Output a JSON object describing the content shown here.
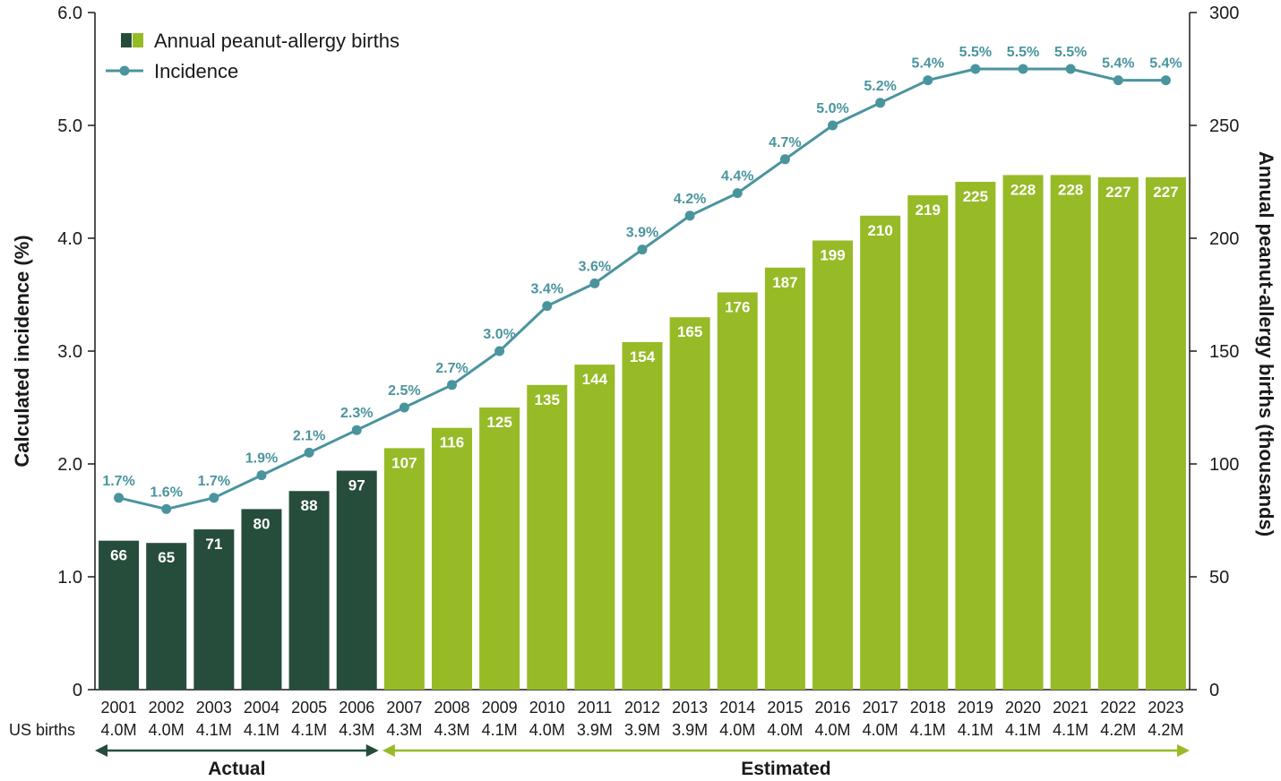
{
  "chart_data": {
    "type": "bar",
    "categories": [
      "2001",
      "2002",
      "2003",
      "2004",
      "2005",
      "2006",
      "2007",
      "2008",
      "2009",
      "2010",
      "2011",
      "2012",
      "2013",
      "2014",
      "2015",
      "2016",
      "2017",
      "2018",
      "2019",
      "2020",
      "2021",
      "2022",
      "2023"
    ],
    "us_births_label": "US births",
    "us_births": [
      "4.0M",
      "4.0M",
      "4.1M",
      "4.1M",
      "4.1M",
      "4.3M",
      "4.3M",
      "4.3M",
      "4.1M",
      "4.0M",
      "3.9M",
      "3.9M",
      "3.9M",
      "4.0M",
      "4.0M",
      "4.0M",
      "4.0M",
      "4.1M",
      "4.1M",
      "4.1M",
      "4.1M",
      "4.2M",
      "4.2M"
    ],
    "series": [
      {
        "name": "Annual peanut-allergy births",
        "type": "bar",
        "axis": "right",
        "values": [
          66,
          65,
          71,
          80,
          88,
          97,
          107,
          116,
          125,
          135,
          144,
          154,
          165,
          176,
          187,
          199,
          210,
          219,
          225,
          228,
          228,
          227,
          227
        ],
        "labels": [
          "66",
          "65",
          "71",
          "80",
          "88",
          "97",
          "107",
          "116",
          "125",
          "135",
          "144",
          "154",
          "165",
          "176",
          "187",
          "199",
          "210",
          "219",
          "225",
          "228",
          "228",
          "227",
          "227"
        ],
        "colors": {
          "actual": "#264d3c",
          "estimated": "#97ba27"
        }
      },
      {
        "name": "Incidence",
        "type": "line",
        "axis": "left",
        "values": [
          1.7,
          1.6,
          1.7,
          1.9,
          2.1,
          2.3,
          2.5,
          2.7,
          3.0,
          3.4,
          3.6,
          3.9,
          4.2,
          4.4,
          4.7,
          5.0,
          5.2,
          5.4,
          5.5,
          5.5,
          5.5,
          5.4,
          5.4
        ],
        "labels": [
          "1.7%",
          "1.6%",
          "1.7%",
          "1.9%",
          "2.1%",
          "2.3%",
          "2.5%",
          "2.7%",
          "3.0%",
          "3.4%",
          "3.6%",
          "3.9%",
          "4.2%",
          "4.4%",
          "4.7%",
          "5.0%",
          "5.2%",
          "5.4%",
          "5.5%",
          "5.5%",
          "5.5%",
          "5.4%",
          "5.4%"
        ],
        "color": "#4a949e"
      }
    ],
    "left_axis": {
      "label": "Calculated incidence (%)",
      "range": [
        0,
        6
      ],
      "ticks": [
        0,
        1,
        2,
        3,
        4,
        5,
        6
      ],
      "tick_labels": [
        "0",
        "1.0",
        "2.0",
        "3.0",
        "4.0",
        "5.0",
        "6.0"
      ]
    },
    "right_axis": {
      "label": "Annual peanut-allergy births (thousands)",
      "range": [
        0,
        300
      ],
      "ticks": [
        0,
        50,
        100,
        150,
        200,
        250,
        300
      ],
      "tick_labels": [
        "0",
        "50",
        "100",
        "150",
        "200",
        "250",
        "300"
      ]
    },
    "periods": [
      {
        "label": "Actual",
        "from": "2001",
        "to": "2006",
        "color": "#264d3c"
      },
      {
        "label": "Estimated",
        "from": "2007",
        "to": "2023",
        "color": "#97ba27"
      }
    ],
    "legend": {
      "placement": "top-left",
      "items": [
        "Annual peanut-allergy births",
        "Incidence"
      ]
    },
    "grid": false
  }
}
